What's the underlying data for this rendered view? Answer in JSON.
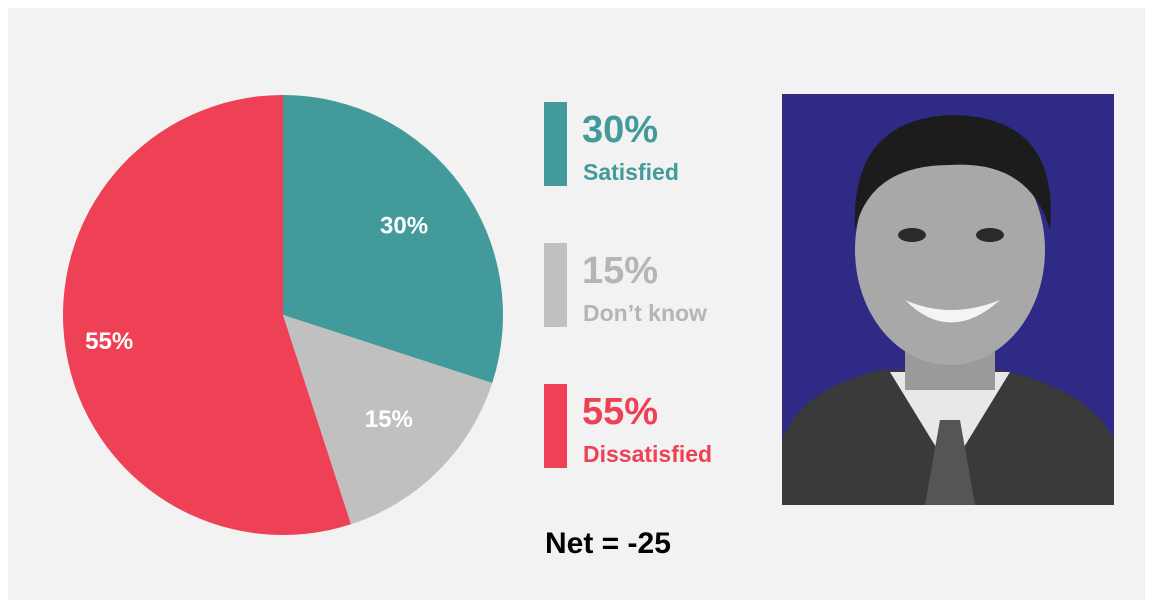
{
  "chart_data": {
    "type": "pie",
    "categories": [
      "Satisfied",
      "Don’t know",
      "Dissatisfied"
    ],
    "values": [
      30,
      15,
      55
    ],
    "value_labels": [
      "30%",
      "15%",
      "55%"
    ],
    "colors": [
      "#429a9a",
      "#c0c0c0",
      "#ef4155"
    ],
    "legend_text_colors": [
      "#429a9a",
      "#b5b5b5",
      "#ef4155"
    ],
    "annotation": "Net = -25"
  }
}
